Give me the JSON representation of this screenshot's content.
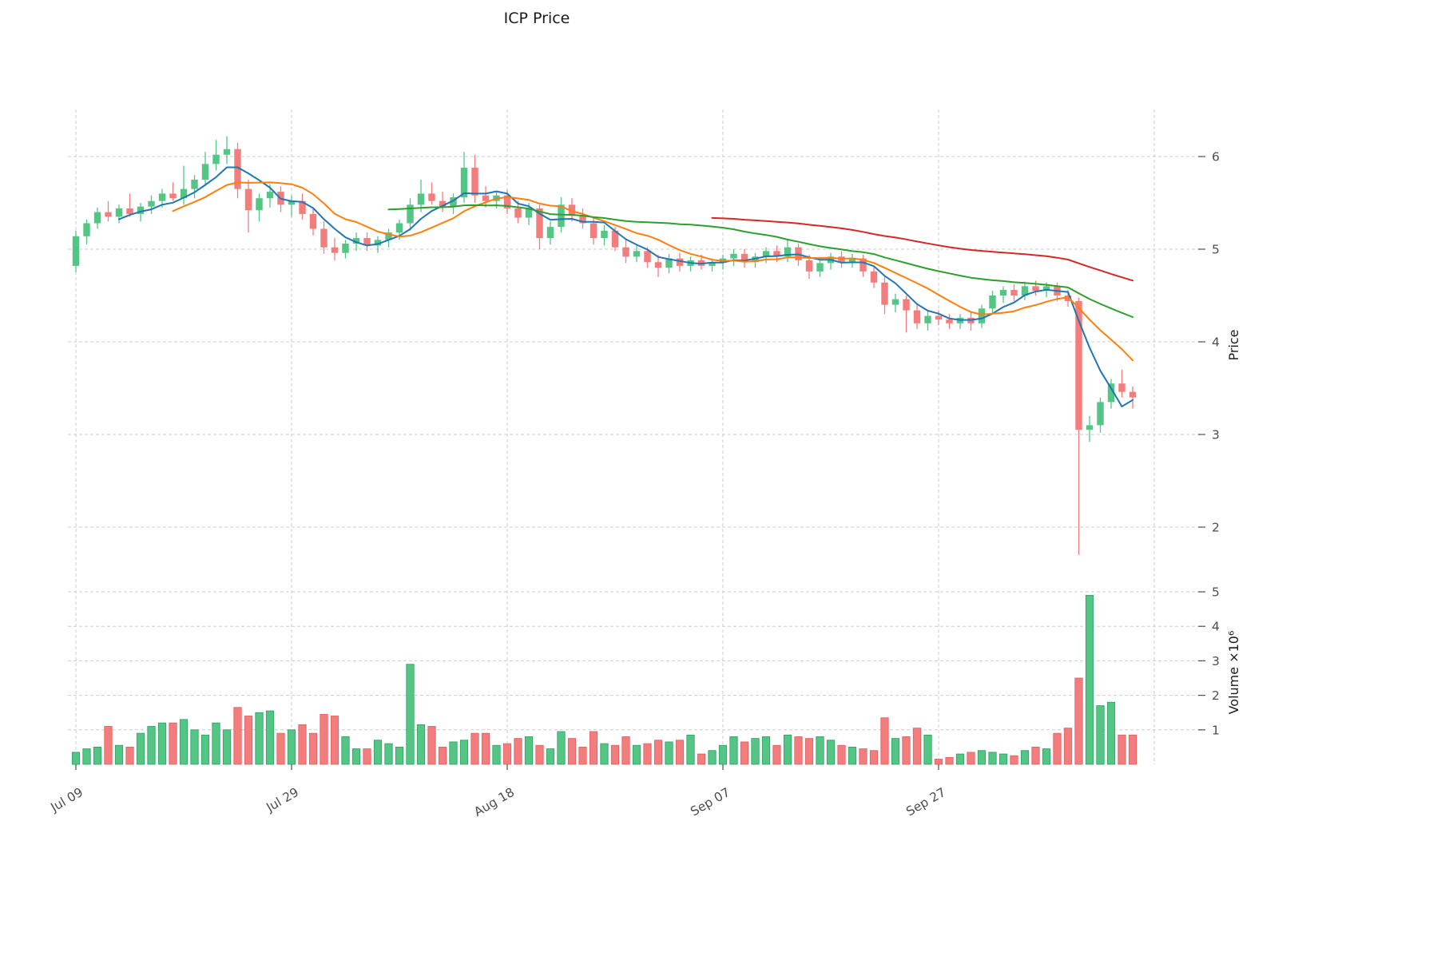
{
  "title": "ICP Price",
  "axes": {
    "price_label": "Price",
    "volume_label": "Volume  ×10⁶",
    "price_ticks": [
      6,
      5,
      4,
      3,
      2
    ],
    "volume_ticks": [
      5,
      4,
      3,
      2,
      1
    ],
    "x_ticks": [
      {
        "index": 0,
        "label": "Jul 09"
      },
      {
        "index": 20,
        "label": "Jul 29"
      },
      {
        "index": 40,
        "label": "Aug 18"
      },
      {
        "index": 60,
        "label": "Sep 07"
      },
      {
        "index": 80,
        "label": "Sep 27"
      }
    ],
    "v_grid_indices": [
      0,
      20,
      40,
      60,
      80,
      100
    ]
  },
  "colors": {
    "up": "#53c584",
    "down": "#f37c7c",
    "up_edge": "#2aa05f",
    "down_edge": "#df5f5f",
    "grid": "#cdcdcd",
    "text": "#4d4d4d",
    "title": "#1a1a1a"
  },
  "chart_data": {
    "type": "candlestick",
    "title": "ICP Price",
    "panels": [
      "price",
      "volume"
    ],
    "price_ylim": [
      1.5,
      6.55
    ],
    "volume_ylim_millions": [
      0,
      5.3
    ],
    "volume_unit": "10^6",
    "legend": "none",
    "grid": "dashed",
    "moving_averages": [
      {
        "name": "MA5",
        "window": 5,
        "color": "#1f77b4"
      },
      {
        "name": "MA10",
        "window": 10,
        "color": "#ff7f0e"
      },
      {
        "name": "MA30",
        "window": 30,
        "color": "#2ca02c"
      },
      {
        "name": "MA60",
        "window": 60,
        "color": "#d62728"
      }
    ],
    "candles": [
      [
        4.82,
        5.2,
        4.75,
        5.14
      ],
      [
        5.14,
        5.32,
        5.05,
        5.28
      ],
      [
        5.28,
        5.45,
        5.22,
        5.4
      ],
      [
        5.4,
        5.52,
        5.3,
        5.35
      ],
      [
        5.35,
        5.48,
        5.28,
        5.44
      ],
      [
        5.44,
        5.6,
        5.35,
        5.38
      ],
      [
        5.38,
        5.5,
        5.3,
        5.46
      ],
      [
        5.46,
        5.58,
        5.38,
        5.52
      ],
      [
        5.52,
        5.65,
        5.45,
        5.6
      ],
      [
        5.6,
        5.72,
        5.52,
        5.55
      ],
      [
        5.55,
        5.9,
        5.48,
        5.65
      ],
      [
        5.65,
        5.8,
        5.55,
        5.75
      ],
      [
        5.75,
        6.05,
        5.68,
        5.92
      ],
      [
        5.92,
        6.18,
        5.85,
        6.02
      ],
      [
        6.02,
        6.22,
        5.92,
        6.08
      ],
      [
        6.08,
        6.15,
        5.55,
        5.65
      ],
      [
        5.65,
        5.75,
        5.18,
        5.42
      ],
      [
        5.42,
        5.6,
        5.3,
        5.55
      ],
      [
        5.55,
        5.7,
        5.45,
        5.62
      ],
      [
        5.62,
        5.68,
        5.4,
        5.48
      ],
      [
        5.48,
        5.58,
        5.35,
        5.52
      ],
      [
        5.52,
        5.6,
        5.32,
        5.38
      ],
      [
        5.38,
        5.45,
        5.15,
        5.22
      ],
      [
        5.22,
        5.3,
        4.95,
        5.02
      ],
      [
        5.02,
        5.12,
        4.88,
        4.96
      ],
      [
        4.96,
        5.1,
        4.9,
        5.06
      ],
      [
        5.06,
        5.18,
        4.98,
        5.12
      ],
      [
        5.12,
        5.18,
        4.98,
        5.04
      ],
      [
        5.04,
        5.14,
        4.96,
        5.1
      ],
      [
        5.1,
        5.22,
        5.02,
        5.18
      ],
      [
        5.18,
        5.32,
        5.1,
        5.28
      ],
      [
        5.28,
        5.55,
        5.2,
        5.48
      ],
      [
        5.48,
        5.75,
        5.4,
        5.6
      ],
      [
        5.6,
        5.72,
        5.48,
        5.52
      ],
      [
        5.52,
        5.62,
        5.4,
        5.46
      ],
      [
        5.46,
        5.6,
        5.38,
        5.56
      ],
      [
        5.56,
        6.05,
        5.5,
        5.88
      ],
      [
        5.88,
        6.02,
        5.5,
        5.58
      ],
      [
        5.58,
        5.68,
        5.45,
        5.52
      ],
      [
        5.52,
        5.62,
        5.44,
        5.58
      ],
      [
        5.58,
        5.64,
        5.38,
        5.44
      ],
      [
        5.44,
        5.52,
        5.28,
        5.34
      ],
      [
        5.34,
        5.5,
        5.26,
        5.44
      ],
      [
        5.44,
        5.48,
        5.0,
        5.12
      ],
      [
        5.12,
        5.3,
        5.05,
        5.24
      ],
      [
        5.24,
        5.56,
        5.18,
        5.48
      ],
      [
        5.48,
        5.55,
        5.3,
        5.36
      ],
      [
        5.36,
        5.44,
        5.22,
        5.28
      ],
      [
        5.28,
        5.34,
        5.05,
        5.12
      ],
      [
        5.12,
        5.26,
        5.04,
        5.2
      ],
      [
        5.2,
        5.24,
        4.98,
        5.02
      ],
      [
        5.02,
        5.1,
        4.85,
        4.92
      ],
      [
        4.92,
        5.04,
        4.86,
        4.98
      ],
      [
        4.98,
        5.02,
        4.8,
        4.86
      ],
      [
        4.86,
        4.94,
        4.7,
        4.8
      ],
      [
        4.8,
        4.95,
        4.74,
        4.9
      ],
      [
        4.9,
        4.96,
        4.76,
        4.82
      ],
      [
        4.82,
        4.92,
        4.76,
        4.88
      ],
      [
        4.88,
        4.94,
        4.78,
        4.82
      ],
      [
        4.82,
        4.9,
        4.76,
        4.86
      ],
      [
        4.86,
        4.94,
        4.78,
        4.9
      ],
      [
        4.9,
        5.0,
        4.82,
        4.95
      ],
      [
        4.95,
        5.0,
        4.8,
        4.86
      ],
      [
        4.86,
        4.96,
        4.8,
        4.92
      ],
      [
        4.92,
        5.02,
        4.85,
        4.98
      ],
      [
        4.98,
        5.04,
        4.86,
        4.92
      ],
      [
        4.92,
        5.1,
        4.86,
        5.02
      ],
      [
        5.02,
        5.06,
        4.82,
        4.88
      ],
      [
        4.88,
        4.94,
        4.68,
        4.76
      ],
      [
        4.76,
        4.9,
        4.7,
        4.85
      ],
      [
        4.85,
        4.96,
        4.78,
        4.92
      ],
      [
        4.92,
        4.98,
        4.8,
        4.86
      ],
      [
        4.86,
        4.95,
        4.8,
        4.9
      ],
      [
        4.9,
        4.94,
        4.7,
        4.76
      ],
      [
        4.76,
        4.82,
        4.58,
        4.64
      ],
      [
        4.64,
        4.7,
        4.3,
        4.4
      ],
      [
        4.4,
        4.52,
        4.32,
        4.46
      ],
      [
        4.46,
        4.5,
        4.1,
        4.34
      ],
      [
        4.34,
        4.4,
        4.14,
        4.2
      ],
      [
        4.2,
        4.34,
        4.12,
        4.28
      ],
      [
        4.28,
        4.34,
        4.18,
        4.24
      ],
      [
        4.24,
        4.3,
        4.14,
        4.2
      ],
      [
        4.2,
        4.3,
        4.14,
        4.26
      ],
      [
        4.26,
        4.32,
        4.12,
        4.2
      ],
      [
        4.2,
        4.4,
        4.15,
        4.36
      ],
      [
        4.36,
        4.55,
        4.3,
        4.5
      ],
      [
        4.5,
        4.6,
        4.42,
        4.56
      ],
      [
        4.56,
        4.62,
        4.44,
        4.5
      ],
      [
        4.5,
        4.65,
        4.45,
        4.6
      ],
      [
        4.6,
        4.66,
        4.5,
        4.55
      ],
      [
        4.55,
        4.64,
        4.48,
        4.6
      ],
      [
        4.6,
        4.64,
        4.44,
        4.5
      ],
      [
        4.5,
        4.56,
        4.38,
        4.44
      ],
      [
        4.44,
        4.48,
        1.7,
        3.05
      ],
      [
        3.05,
        3.2,
        2.92,
        3.1
      ],
      [
        3.1,
        3.4,
        3.02,
        3.35
      ],
      [
        3.35,
        3.6,
        3.28,
        3.55
      ],
      [
        3.55,
        3.7,
        3.4,
        3.46
      ],
      [
        3.46,
        3.52,
        3.28,
        3.4
      ]
    ],
    "volumes_millions": [
      0.35,
      0.45,
      0.5,
      1.1,
      0.55,
      0.5,
      0.9,
      1.1,
      1.2,
      1.2,
      1.3,
      1.0,
      0.85,
      1.2,
      1.0,
      1.65,
      1.4,
      1.5,
      1.55,
      0.9,
      1.0,
      1.15,
      0.9,
      1.45,
      1.4,
      0.8,
      0.45,
      0.45,
      0.7,
      0.6,
      0.5,
      2.9,
      1.15,
      1.1,
      0.5,
      0.65,
      0.7,
      0.9,
      0.9,
      0.55,
      0.6,
      0.75,
      0.8,
      0.55,
      0.45,
      0.95,
      0.75,
      0.5,
      0.95,
      0.6,
      0.55,
      0.8,
      0.55,
      0.6,
      0.7,
      0.65,
      0.7,
      0.85,
      0.3,
      0.4,
      0.55,
      0.8,
      0.65,
      0.75,
      0.8,
      0.55,
      0.85,
      0.8,
      0.75,
      0.8,
      0.7,
      0.55,
      0.5,
      0.45,
      0.4,
      1.35,
      0.75,
      0.8,
      1.05,
      0.85,
      0.15,
      0.2,
      0.3,
      0.35,
      0.4,
      0.35,
      0.3,
      0.25,
      0.4,
      0.5,
      0.45,
      0.9,
      1.05,
      2.5,
      4.9,
      1.7,
      1.8,
      0.85,
      0.85
    ]
  }
}
